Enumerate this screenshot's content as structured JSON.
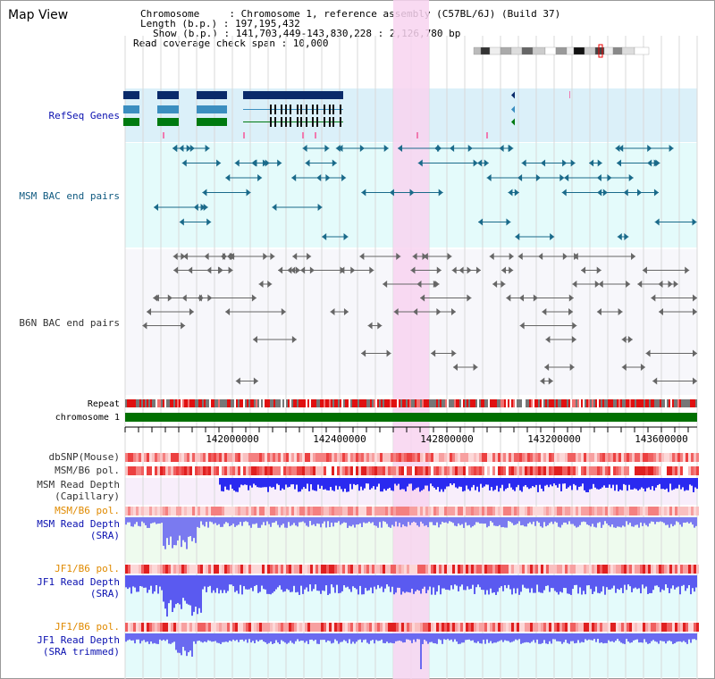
{
  "title": "Map View",
  "info": {
    "chromosome": "Chromosome     : Chromosome 1, reference assembly (C57BL/6J) (Build 37)",
    "length": "Length (b.p.) : 197,195,432",
    "show": "Show (b.p.) : 141,703,449-143,830,228 : 2,126,780 bp",
    "coverage": "Read coverage check span : 10,000"
  },
  "tracks": {
    "refseq": "RefSeq Genes",
    "msm_bac": "MSM BAC end pairs",
    "b6n_bac": "B6N BAC end pairs",
    "repeat": "Repeat",
    "chromosome": "chromosome 1",
    "dbsnp": "dbSNP(Mouse)",
    "msm_b6_pol": "MSM/B6 pol.",
    "msm_depth_cap_1": "MSM Read Depth",
    "msm_depth_cap_2": "(Capillary)",
    "msm_b6_pol_2": "MSM/B6 pol.",
    "msm_depth_sra_1": "MSM Read Depth",
    "msm_depth_sra_2": "(SRA)",
    "jf1_b6_pol": "JF1/B6 pol.",
    "jf1_depth_sra_1": "JF1 Read Depth",
    "jf1_depth_sra_2": "(SRA)",
    "jf1_b6_pol_2": "JF1/B6 pol.",
    "jf1_depth_trim_1": "JF1 Read Depth",
    "jf1_depth_trim_2": "(SRA trimmed)"
  },
  "ruler": {
    "ticks": [
      "142000000",
      "142400000",
      "142800000",
      "143200000",
      "143600000"
    ]
  },
  "colors": {
    "refseq_bg": "#dbf0f9",
    "msm_bg": "#e4fbfb",
    "b6n_bg": "#f7f7fb",
    "highlight": "#f8d4f0",
    "refseq_label": "#0a10b0",
    "msm_label": "#105a80",
    "pol_label": "#e08a00",
    "depth_label": "#0a10b0",
    "gene_dark": "#0a2a6a",
    "gene_mid": "#3b8ec0",
    "gene_green": "#007a10",
    "bac_msm": "#1a6a8a",
    "bac_b6n": "#666666",
    "depth_fill": "#2a2af0"
  }
}
